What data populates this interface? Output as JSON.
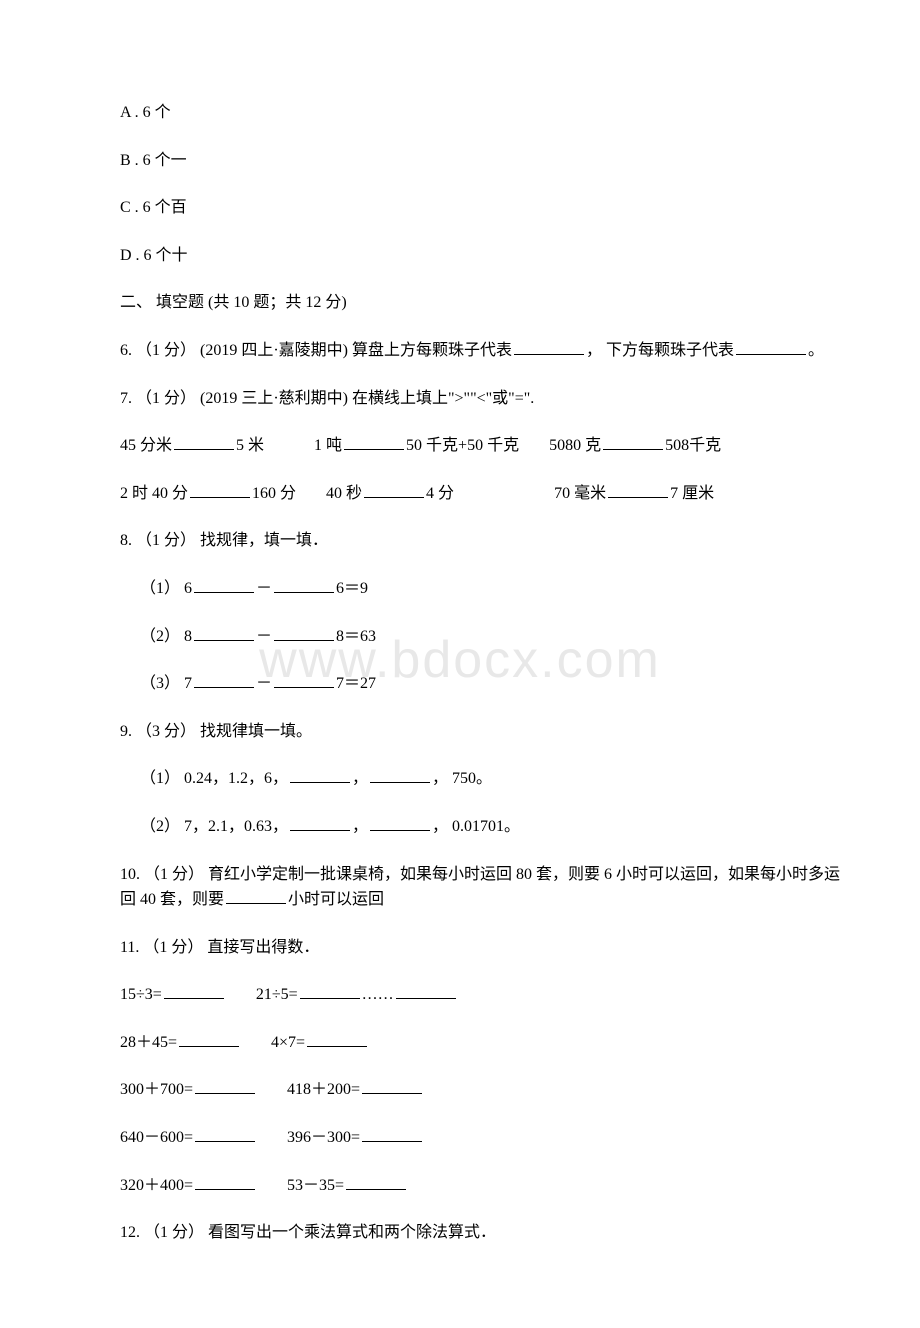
{
  "watermark": "www.bdocx.com",
  "options": {
    "a": "A . 6 个",
    "b": "B . 6 个一",
    "c": "C . 6 个百",
    "d": "D . 6 个十"
  },
  "section2_title": "二、 填空题 (共 10 题；共 12 分)",
  "q6": {
    "prefix": "6. （1 分） (2019 四上·嘉陵期中) 算盘上方每颗珠子代表",
    "mid": "， 下方每颗珠子代表",
    "suffix": "。"
  },
  "q7": {
    "text": "7. （1 分） (2019 三上·慈利期中) 在横线上填上\">\"\"<\"或\"=\".",
    "r1_a": "45 分米",
    "r1_b": "5 米",
    "r1_c": "1 吨",
    "r1_d": "50 千克+50 千克",
    "r1_e": "5080 克",
    "r1_f": "508千克",
    "r2_a": "2 时 40 分",
    "r2_b": "160 分",
    "r2_c": "40 秒",
    "r2_d": "4 分",
    "r2_e": "70 毫米",
    "r2_f": "7 厘米"
  },
  "q8": {
    "text": "8. （1 分） 找规律，填一填．",
    "s1_a": "（1） 6",
    "s1_b": "－",
    "s1_c": "6＝9",
    "s2_a": "（2） 8",
    "s2_b": "－",
    "s2_c": "8＝63",
    "s3_a": "（3） 7",
    "s3_b": "－",
    "s3_c": "7＝27"
  },
  "q9": {
    "text": "9. （3 分） 找规律填一填。",
    "s1_a": "（1） 0.24，1.2，6，",
    "s1_b": "，",
    "s1_c": "， 750。",
    "s2_a": "（2） 7，2.1，0.63，",
    "s2_b": "，",
    "s2_c": "， 0.01701。"
  },
  "q10": {
    "prefix": "10. （1 分） 育红小学定制一批课桌椅，如果每小时运回 80 套，则要 6 小时可以运回，如果每小时多运回 40 套，则要",
    "suffix": "小时可以运回"
  },
  "q11": {
    "text": "11. （1 分） 直接写出得数．",
    "r1_a": "15÷3=",
    "r1_b": "21÷5=",
    "r1_c": "……",
    "r2_a": "28＋45=",
    "r2_b": "4×7=",
    "r3_a": "300＋700=",
    "r3_b": "418＋200=",
    "r4_a": "640－600=",
    "r4_b": "396－300=",
    "r5_a": "320＋400=",
    "r5_b": "53－35="
  },
  "q12": {
    "text": "12. （1 分） 看图写出一个乘法算式和两个除法算式．"
  }
}
